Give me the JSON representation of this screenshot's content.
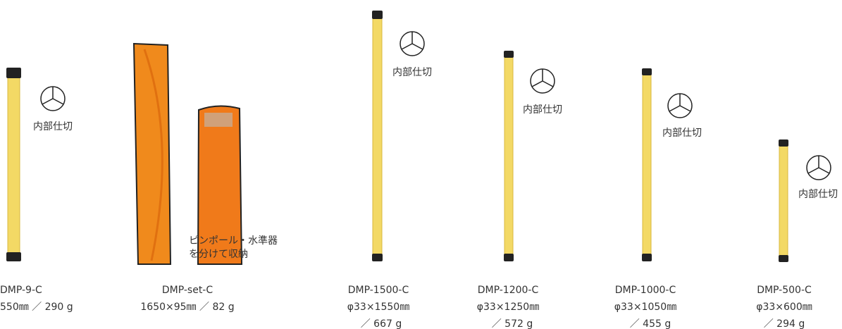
{
  "products": [
    {
      "model": "DMP-9-C",
      "lines": [
        "550㎜ ／ 290 g"
      ],
      "note": "内部仕切"
    },
    {
      "model": "DMP-set-C",
      "lines": [
        "1650×95㎜ ／ 82 g"
      ],
      "note": [
        "ピンポール・水準器",
        "を分けて収納"
      ]
    },
    {
      "model": "DMP-1500-C",
      "lines": [
        "φ33×1550㎜",
        "／ 667 g"
      ],
      "note": "内部仕切"
    },
    {
      "model": "DMP-1200-C",
      "lines": [
        "φ33×1250㎜",
        "／ 572 g"
      ],
      "note": "内部仕切"
    },
    {
      "model": "DMP-1000-C",
      "lines": [
        "φ33×1050㎜",
        "／ 455 g"
      ],
      "note": "内部仕切"
    },
    {
      "model": "DMP-500-C",
      "lines": [
        "φ33×600㎜",
        "／ 294 g"
      ],
      "note": "内部仕切"
    }
  ]
}
